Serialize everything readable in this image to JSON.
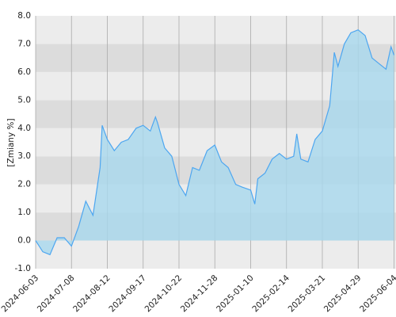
{
  "chart_data": {
    "type": "area",
    "y_label": "[Zmiany %]",
    "x": [
      "2024-06-03",
      "2024-06-10",
      "2024-06-17",
      "2024-06-24",
      "2024-07-01",
      "2024-07-08",
      "2024-07-15",
      "2024-07-22",
      "2024-07-29",
      "2024-08-05",
      "2024-08-07",
      "2024-08-12",
      "2024-08-19",
      "2024-08-26",
      "2024-09-02",
      "2024-09-10",
      "2024-09-17",
      "2024-09-24",
      "2024-09-29",
      "2024-10-01",
      "2024-10-08",
      "2024-10-15",
      "2024-10-22",
      "2024-10-29",
      "2024-11-05",
      "2024-11-12",
      "2024-11-20",
      "2024-11-28",
      "2024-12-06",
      "2024-12-14",
      "2024-12-23",
      "2024-12-31",
      "2025-01-10",
      "2025-01-14",
      "2025-01-17",
      "2025-01-24",
      "2025-01-31",
      "2025-02-07",
      "2025-02-14",
      "2025-02-21",
      "2025-02-24",
      "2025-02-28",
      "2025-03-07",
      "2025-03-14",
      "2025-03-21",
      "2025-03-29",
      "2025-04-03",
      "2025-04-07",
      "2025-04-14",
      "2025-04-21",
      "2025-04-29",
      "2025-05-06",
      "2025-05-13",
      "2025-05-20",
      "2025-05-27",
      "2025-06-01",
      "2025-06-04"
    ],
    "series": [
      {
        "color": "#4da6f0",
        "fill": "#a8d8ee",
        "values": [
          0.0,
          -0.4,
          -0.5,
          0.1,
          0.1,
          -0.2,
          0.5,
          1.4,
          0.9,
          2.6,
          4.1,
          3.6,
          3.2,
          3.5,
          3.6,
          4.0,
          4.1,
          3.9,
          4.4,
          4.2,
          3.3,
          3.0,
          2.0,
          1.6,
          2.6,
          2.5,
          3.2,
          3.4,
          2.8,
          2.6,
          2.0,
          1.9,
          1.8,
          1.3,
          2.2,
          2.4,
          2.9,
          3.1,
          2.9,
          3.0,
          3.8,
          2.9,
          2.8,
          3.6,
          3.9,
          4.8,
          6.7,
          6.2,
          7.0,
          7.4,
          7.5,
          7.3,
          6.5,
          6.3,
          6.1,
          6.9,
          6.6
        ]
      }
    ],
    "xlim": [
      "2024-06-03",
      "2025-06-06"
    ],
    "xticks": [
      "2024-06-03",
      "2024-07-08",
      "2024-08-12",
      "2024-09-17",
      "2024-10-22",
      "2024-11-28",
      "2025-01-10",
      "2025-02-14",
      "2025-03-21",
      "2025-04-29",
      "2025-06-04"
    ],
    "ylim": [
      -1,
      8
    ],
    "yticks": [
      {
        "value": -1,
        "label": "-1.0"
      },
      {
        "value": 0,
        "label": "0.0"
      },
      {
        "value": 1,
        "label": "1.0"
      },
      {
        "value": 2,
        "label": "2.0"
      },
      {
        "value": 3,
        "label": "3.0"
      },
      {
        "value": 4,
        "label": "4.0"
      },
      {
        "value": 5,
        "label": "5.0"
      },
      {
        "value": 6,
        "label": "6.0"
      },
      {
        "value": 7,
        "label": "7.0"
      },
      {
        "value": 8,
        "label": "8.0"
      }
    ],
    "band_colors": [
      "#ececec",
      "#dcdcdc"
    ],
    "grid": true
  }
}
